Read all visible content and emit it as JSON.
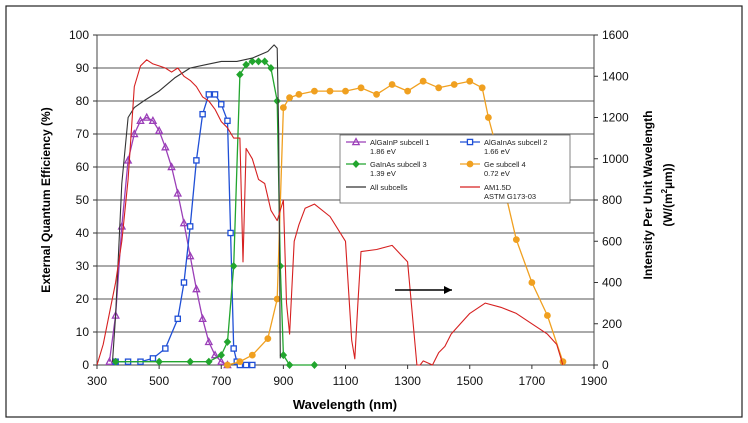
{
  "chart_data": {
    "type": "line",
    "xlabel": "Wavelength  (nm)",
    "ylabel": "External Quantum Efficiency  (%)",
    "y2label_line1": "Intensity Per Unit Wavelength",
    "y2label_line2": "(W/(m",
    "y2label_sup": "2",
    "y2label_line3": "µm))",
    "xlim": [
      300,
      1900
    ],
    "ylim": [
      0,
      100
    ],
    "y2lim": [
      0,
      1600
    ],
    "xticks": [
      300,
      500,
      700,
      900,
      1100,
      1300,
      1500,
      1700,
      1900
    ],
    "yticks": [
      0,
      10,
      20,
      30,
      40,
      50,
      60,
      70,
      80,
      90,
      100
    ],
    "y2ticks": [
      0,
      200,
      400,
      600,
      800,
      1000,
      1200,
      1400,
      1600
    ],
    "grid": "horizontal",
    "legend_placement": "center-right",
    "legend": [
      {
        "label": "AlGaInP subcell 1",
        "sub": "1.86 eV",
        "color": "#9b3fb8",
        "marker": "triangle"
      },
      {
        "label": "AlGaInAs subcell 2",
        "sub": "1.66 eV",
        "color": "#1f4fd6",
        "marker": "square"
      },
      {
        "label": "GaInAs subcell 3",
        "sub": "1.39 eV",
        "color": "#22a52e",
        "marker": "diamond"
      },
      {
        "label": "Ge subcell 4",
        "sub": "0.72 eV",
        "color": "#f0a020",
        "marker": "circle"
      },
      {
        "label": "All subcells",
        "sub": "",
        "color": "#333333",
        "marker": "none"
      },
      {
        "label": "AM1.5D",
        "sub": "ASTM G173-03",
        "color": "#d62020",
        "marker": "none"
      }
    ],
    "series": [
      {
        "name": "AlGaInP subcell 1",
        "axis": "left",
        "color": "#9b3fb8",
        "marker": "triangle",
        "x": [
          340,
          360,
          380,
          400,
          420,
          440,
          460,
          480,
          500,
          520,
          540,
          560,
          580,
          600,
          620,
          640,
          660,
          680,
          700,
          720
        ],
        "y": [
          1,
          15,
          42,
          62,
          70,
          74,
          75,
          74,
          71,
          66,
          60,
          52,
          43,
          33,
          23,
          14,
          7,
          3,
          1,
          0
        ]
      },
      {
        "name": "AlGaInAs subcell 2",
        "axis": "left",
        "color": "#1f4fd6",
        "marker": "square",
        "x": [
          360,
          400,
          440,
          480,
          520,
          560,
          580,
          600,
          620,
          640,
          660,
          680,
          700,
          720,
          730,
          740,
          750,
          760,
          780,
          800
        ],
        "y": [
          1,
          1,
          1,
          2,
          5,
          14,
          25,
          42,
          62,
          76,
          82,
          82,
          79,
          74,
          40,
          5,
          1,
          0,
          0,
          0
        ]
      },
      {
        "name": "GaInAs subcell 3",
        "axis": "left",
        "color": "#22a52e",
        "marker": "diamond",
        "x": [
          360,
          500,
          600,
          660,
          700,
          720,
          740,
          760,
          780,
          800,
          820,
          840,
          860,
          880,
          890,
          900,
          920,
          1000
        ],
        "y": [
          1,
          1,
          1,
          1,
          3,
          7,
          30,
          88,
          91,
          92,
          92,
          92,
          90,
          80,
          30,
          3,
          0,
          0
        ]
      },
      {
        "name": "Ge subcell 4",
        "axis": "left",
        "color": "#f0a020",
        "marker": "circle",
        "x": [
          720,
          760,
          800,
          850,
          880,
          900,
          920,
          950,
          1000,
          1050,
          1100,
          1150,
          1200,
          1250,
          1300,
          1350,
          1400,
          1450,
          1500,
          1540,
          1560,
          1580,
          1600,
          1620,
          1650,
          1700,
          1750,
          1800
        ],
        "y": [
          0,
          1,
          3,
          8,
          20,
          78,
          81,
          82,
          83,
          83,
          83,
          84,
          82,
          85,
          83,
          86,
          84,
          85,
          86,
          84,
          75,
          68,
          60,
          50,
          38,
          25,
          15,
          1
        ]
      },
      {
        "name": "All subcells",
        "axis": "left",
        "color": "#333333",
        "marker": "none",
        "x": [
          350,
          360,
          380,
          400,
          420,
          450,
          500,
          550,
          600,
          650,
          700,
          750,
          800,
          850,
          870,
          880,
          885,
          890
        ],
        "y": [
          1,
          15,
          55,
          75,
          78,
          80,
          83,
          87,
          90,
          91,
          92,
          92,
          93,
          95,
          97,
          96,
          70,
          2
        ]
      },
      {
        "name": "AM1.5D",
        "axis": "right",
        "color": "#d62020",
        "marker": "none",
        "x": [
          300,
          320,
          340,
          360,
          380,
          400,
          420,
          440,
          460,
          480,
          500,
          520,
          540,
          560,
          580,
          600,
          620,
          640,
          660,
          680,
          700,
          720,
          740,
          760,
          770,
          780,
          800,
          820,
          840,
          860,
          880,
          900,
          910,
          920,
          935,
          950,
          970,
          1000,
          1050,
          1100,
          1120,
          1130,
          1140,
          1150,
          1200,
          1250,
          1300,
          1330,
          1340,
          1350,
          1380,
          1400,
          1420,
          1440,
          1470,
          1500,
          1550,
          1600,
          1650,
          1700,
          1750,
          1780,
          1800
        ],
        "y": [
          0,
          100,
          250,
          400,
          600,
          900,
          1350,
          1450,
          1480,
          1460,
          1450,
          1440,
          1420,
          1440,
          1400,
          1380,
          1350,
          1300,
          1280,
          1240,
          1180,
          1150,
          1100,
          1100,
          500,
          1050,
          1000,
          900,
          880,
          750,
          700,
          800,
          300,
          150,
          600,
          680,
          760,
          780,
          720,
          600,
          120,
          30,
          300,
          550,
          560,
          580,
          500,
          0,
          0,
          20,
          0,
          60,
          90,
          150,
          200,
          250,
          300,
          280,
          250,
          200,
          150,
          100,
          0
        ]
      }
    ]
  }
}
